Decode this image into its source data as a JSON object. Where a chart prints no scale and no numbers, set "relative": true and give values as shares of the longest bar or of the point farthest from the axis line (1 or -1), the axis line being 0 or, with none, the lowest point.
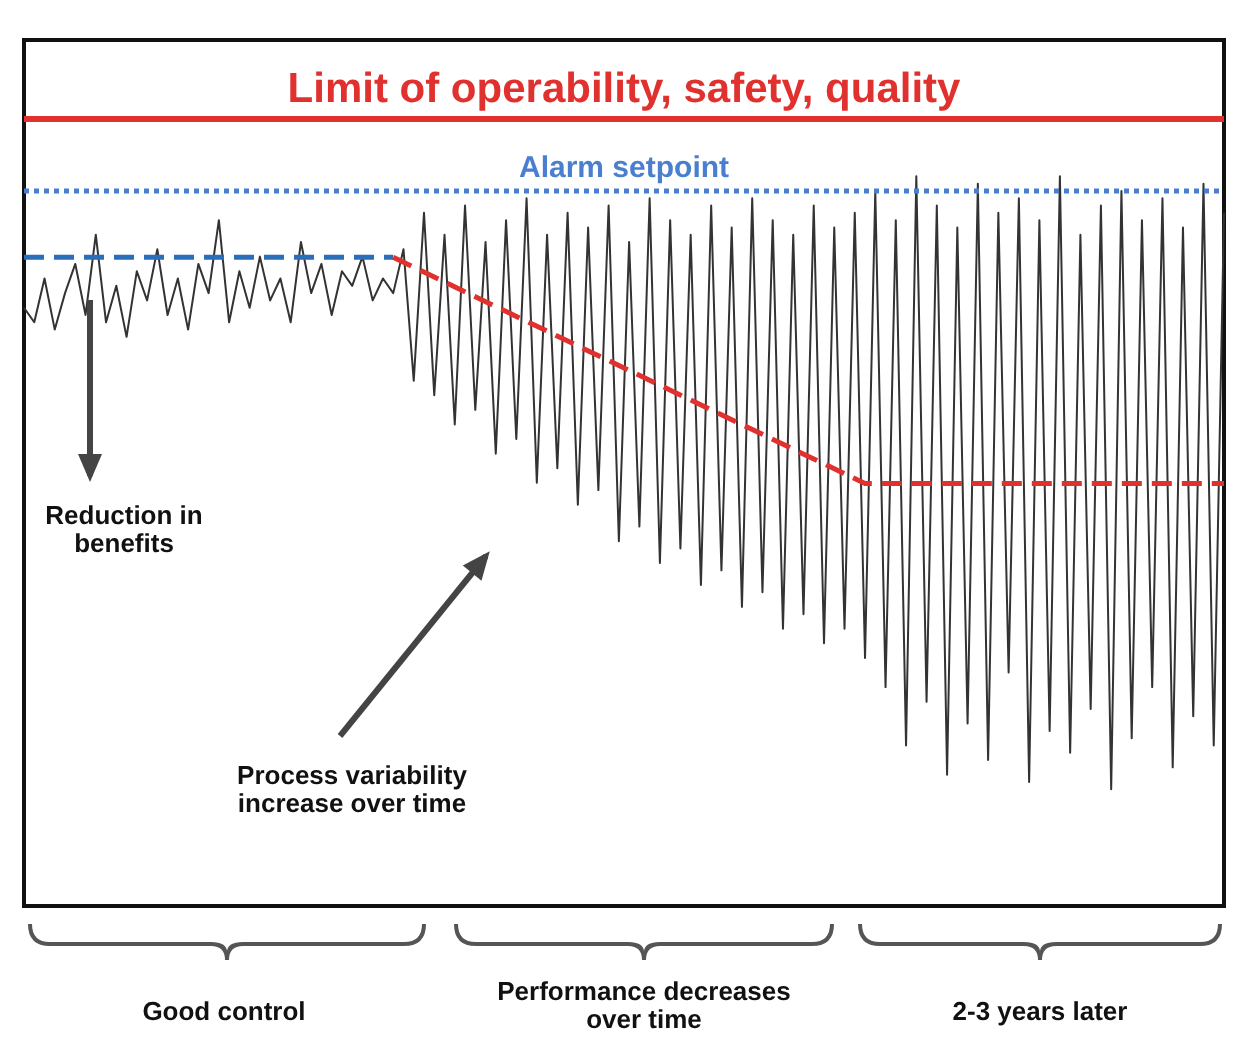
{
  "chart_data": {
    "type": "line",
    "relative": true,
    "grid": false,
    "categories": [
      null,
      null,
      null,
      null,
      null,
      null,
      null,
      null,
      null,
      null,
      null,
      null,
      null,
      null,
      null,
      null,
      null,
      null,
      null,
      null,
      null,
      null,
      null,
      null,
      null,
      null,
      null,
      null,
      null,
      null,
      null,
      null,
      null,
      null,
      null,
      null,
      null,
      null,
      null,
      null,
      null,
      null,
      null,
      null,
      null,
      null,
      null,
      null,
      null,
      null,
      null,
      null,
      null,
      null,
      null,
      null,
      null,
      null,
      null,
      null,
      null,
      null,
      null,
      null,
      null,
      null,
      null,
      null,
      null,
      null,
      null,
      null,
      null,
      null,
      null,
      null,
      null,
      null,
      null,
      null,
      null,
      null,
      null,
      null,
      null,
      null,
      null,
      null,
      null,
      null,
      null,
      null,
      null,
      null,
      null,
      null,
      null,
      null,
      null,
      null,
      null,
      null,
      null,
      null,
      null,
      null,
      null,
      null,
      null,
      null,
      null,
      null,
      null,
      null,
      null,
      null,
      null,
      null
    ],
    "series": [
      {
        "color": "#333333",
        "line_style": "solid",
        "values": [
          0.82,
          0.8,
          0.86,
          0.79,
          0.84,
          0.88,
          0.81,
          0.92,
          0.8,
          0.85,
          0.78,
          0.87,
          0.83,
          0.9,
          0.81,
          0.86,
          0.79,
          0.88,
          0.84,
          0.94,
          0.8,
          0.87,
          0.82,
          0.89,
          0.83,
          0.86,
          0.8,
          0.91,
          0.84,
          0.88,
          0.81,
          0.87,
          0.85,
          0.89,
          0.83,
          0.86,
          0.84,
          0.9,
          0.72,
          0.95,
          0.7,
          0.92,
          0.66,
          0.96,
          0.68,
          0.91,
          0.62,
          0.94,
          0.64,
          0.97,
          0.58,
          0.92,
          0.6,
          0.95,
          0.55,
          0.93,
          0.57,
          0.96,
          0.5,
          0.91,
          0.52,
          0.97,
          0.47,
          0.94,
          0.49,
          0.92,
          0.44,
          0.96,
          0.46,
          0.93,
          0.41,
          0.97,
          0.43,
          0.94,
          0.38,
          0.92,
          0.4,
          0.96,
          0.36,
          0.93,
          0.38,
          0.95,
          0.34,
          0.98,
          0.3,
          0.94,
          0.22,
          1.0,
          0.28,
          0.96,
          0.18,
          0.93,
          0.25,
          0.99,
          0.2,
          0.95,
          0.32,
          0.97,
          0.17,
          0.94,
          0.24,
          1.0,
          0.21,
          0.92,
          0.27,
          0.96,
          0.16,
          0.98,
          0.23,
          0.94,
          0.3,
          0.97,
          0.19,
          0.93,
          0.26,
          0.99,
          0.22,
          0.95
        ]
      },
      {
        "color": "#2a6ebb",
        "line_style": "dashed",
        "values": [
          0.889,
          null,
          null,
          null,
          null,
          null,
          null,
          null,
          null,
          null,
          null,
          null,
          null,
          null,
          null,
          null,
          null,
          null,
          null,
          null,
          null,
          null,
          null,
          null,
          null,
          null,
          null,
          null,
          null,
          null,
          null,
          null,
          null,
          null,
          null,
          null,
          0.889,
          null,
          null,
          null,
          null,
          null,
          null,
          null,
          null,
          null,
          null,
          null,
          null,
          null,
          null,
          null,
          null,
          null,
          null,
          null,
          null,
          null,
          null,
          null,
          null,
          null,
          null,
          null,
          null,
          null,
          null,
          null,
          null,
          null,
          null,
          null,
          null,
          null,
          null,
          null,
          null,
          null,
          null,
          null,
          null,
          null,
          null,
          null,
          null,
          null,
          null,
          null,
          null,
          null,
          null,
          null,
          null,
          null,
          null,
          null,
          null,
          null,
          null,
          null,
          null,
          null,
          null,
          null,
          null,
          null,
          null,
          null,
          null,
          null,
          null,
          null,
          null,
          null,
          null,
          null,
          null,
          null
        ]
      },
      {
        "color": "#e0312f",
        "line_style": "dashed",
        "values": [
          null,
          null,
          null,
          null,
          null,
          null,
          null,
          null,
          null,
          null,
          null,
          null,
          null,
          null,
          null,
          null,
          null,
          null,
          null,
          null,
          null,
          null,
          null,
          null,
          null,
          null,
          null,
          null,
          null,
          null,
          null,
          null,
          null,
          null,
          null,
          null,
          0.889,
          null,
          null,
          null,
          null,
          null,
          null,
          null,
          null,
          null,
          null,
          null,
          null,
          null,
          null,
          null,
          null,
          null,
          null,
          null,
          null,
          null,
          null,
          null,
          null,
          null,
          null,
          null,
          null,
          null,
          null,
          null,
          null,
          null,
          null,
          null,
          null,
          null,
          null,
          null,
          null,
          null,
          null,
          null,
          null,
          null,
          0.579,
          null,
          null,
          null,
          null,
          null,
          null,
          null,
          null,
          null,
          null,
          null,
          null,
          null,
          null,
          null,
          null,
          null,
          null,
          null,
          null,
          null,
          null,
          null,
          null,
          null,
          null,
          null,
          null,
          null,
          null,
          null,
          null,
          null,
          null,
          0.579
        ]
      }
    ],
    "ref_lines": [
      {
        "axis": "y",
        "value": 1.079,
        "label": "Limit of operability, safety, quality",
        "color": "#e0312f",
        "line_style": "solid"
      },
      {
        "axis": "y",
        "value": 0.979,
        "label": "Alarm setpoint",
        "color": "#4a7fd0",
        "line_style": "dotted"
      }
    ],
    "annotations": [
      "Reduction in benefits",
      "Process variability increase over time",
      "Good control",
      "Performance decreases over time",
      "2-3 years later"
    ]
  }
}
